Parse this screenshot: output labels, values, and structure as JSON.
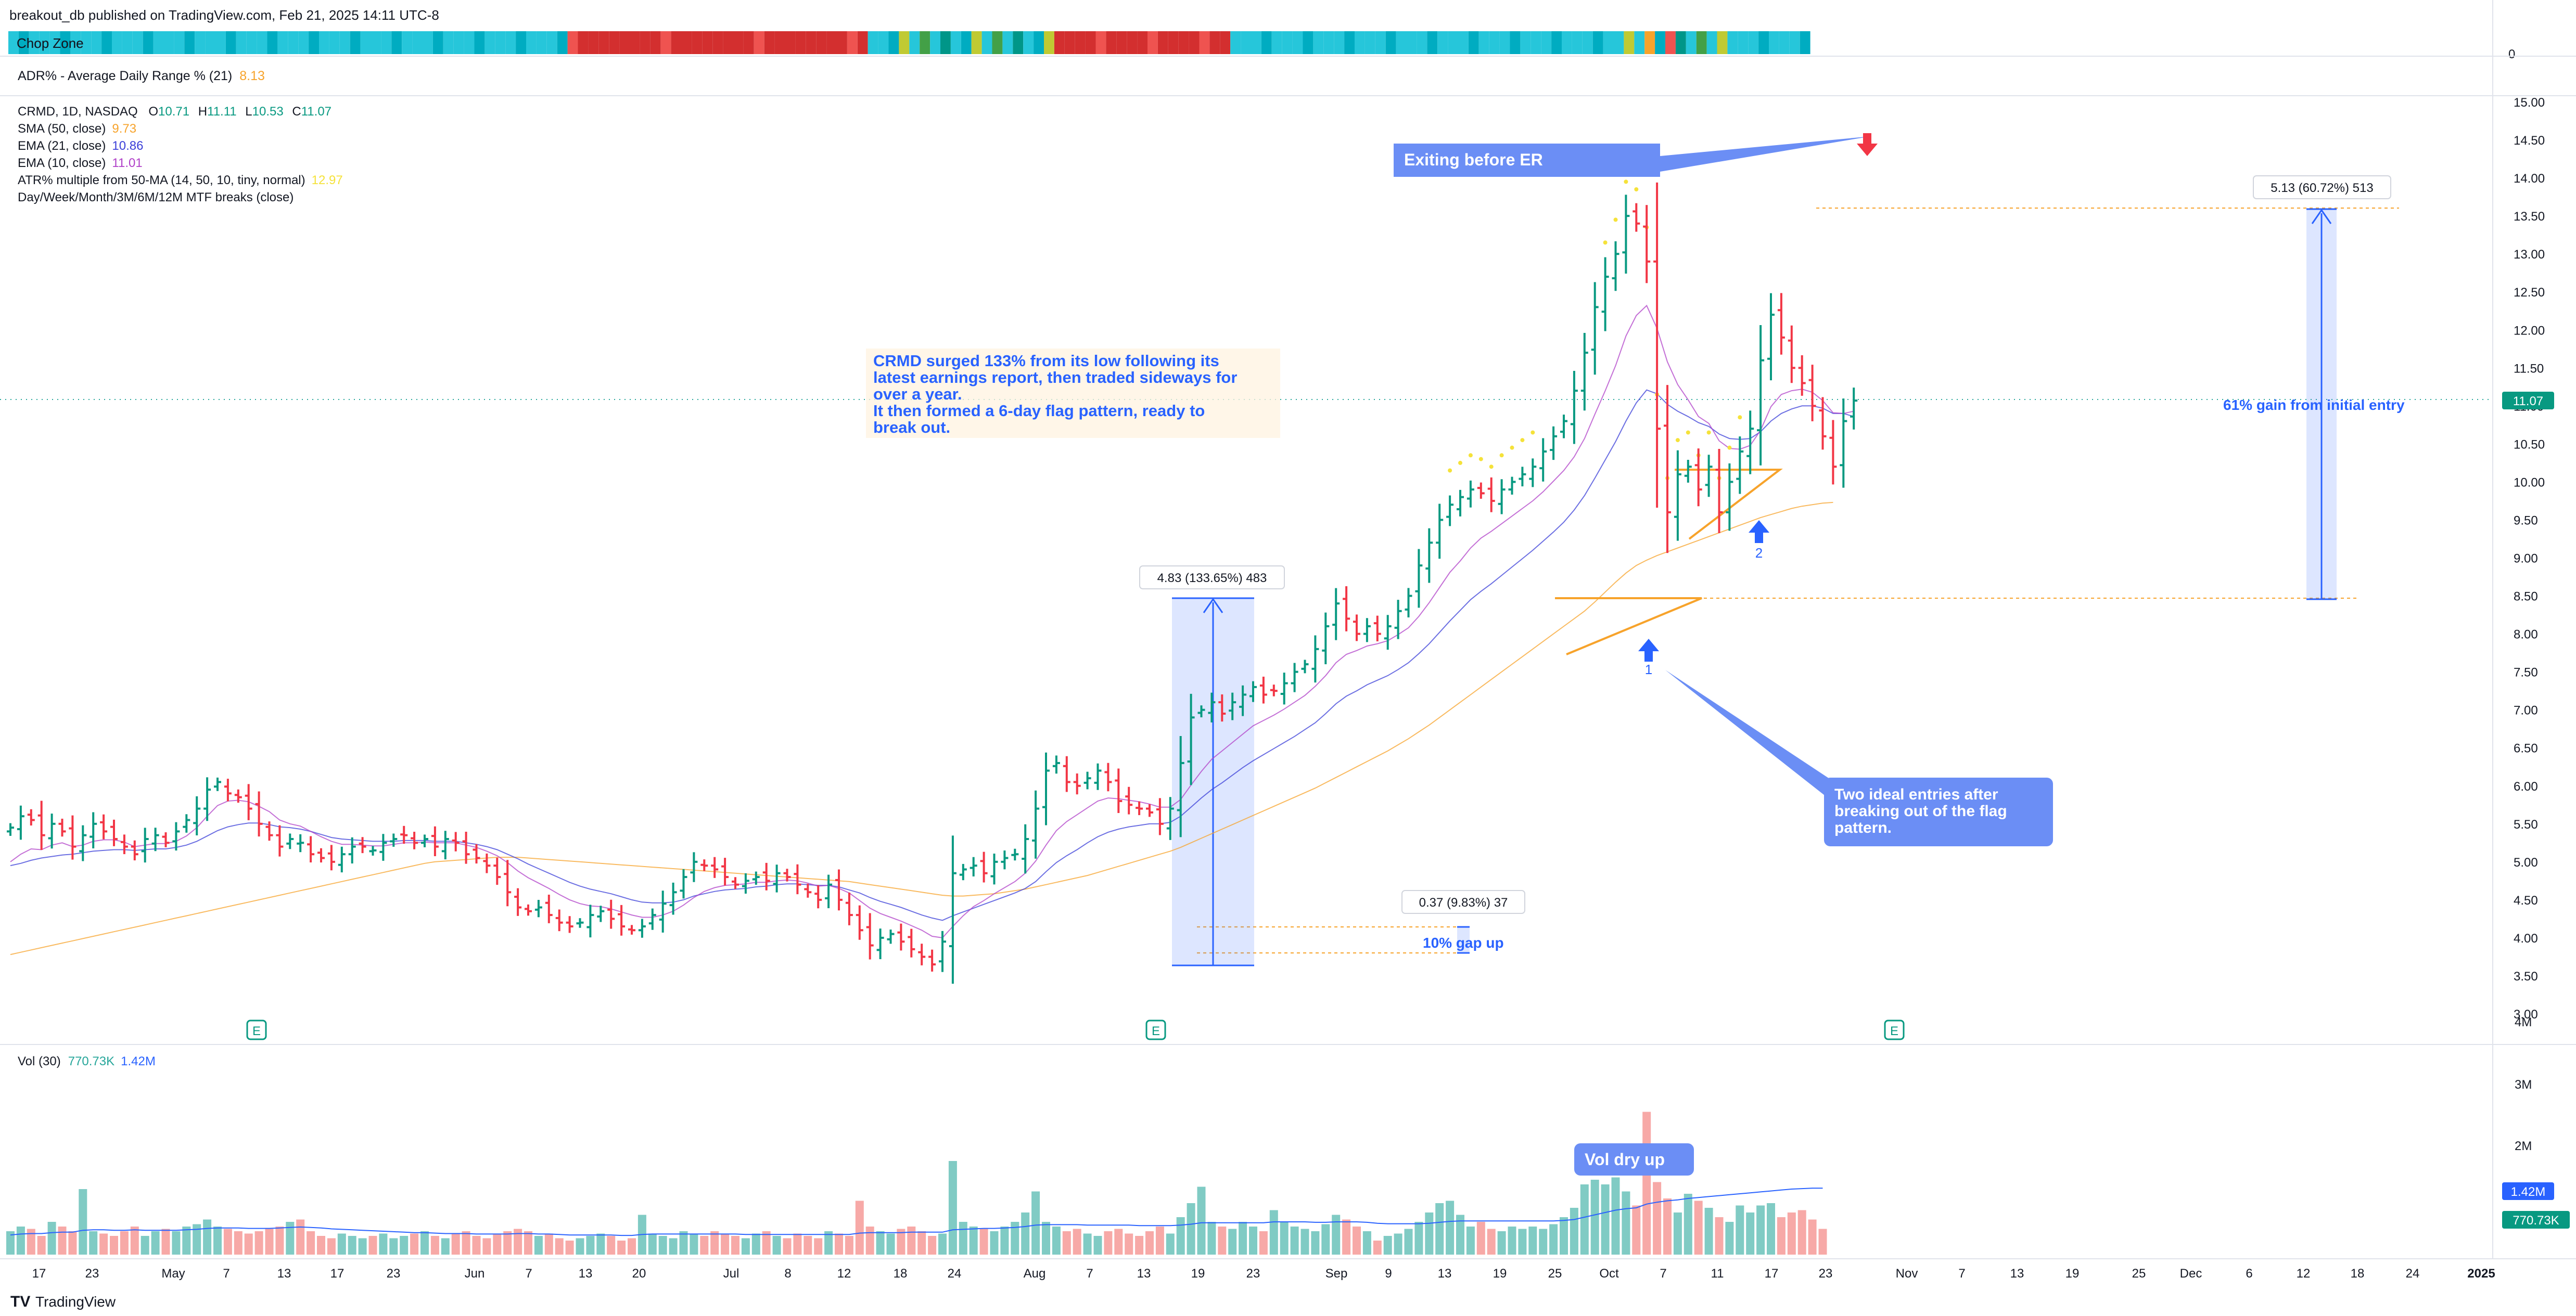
{
  "header": {
    "published": "breakout_db published on TradingView.com, Feb 21, 2025 14:11 UTC-8",
    "chop_zone_label": "Chop Zone",
    "chop_zone_axis": "0",
    "adr_label": "ADR% - Average Daily Range % (21)",
    "adr_value": "8.13",
    "symbol": "CRMD, 1D, NASDAQ",
    "ohlc": {
      "O": "10.71",
      "H": "11.11",
      "L": "10.53",
      "C": "11.07"
    },
    "indicators": [
      {
        "label": "SMA (50, close)",
        "value": "9.73",
        "color": "#f7a32b"
      },
      {
        "label": "EMA (21, close)",
        "value": "10.86",
        "color": "#3b3fd8"
      },
      {
        "label": "EMA (10, close)",
        "value": "11.01",
        "color": "#b040c8"
      },
      {
        "label": "ATR% multiple from 50-MA (14, 50, 10, tiny, normal)",
        "value": "12.97",
        "color": "#f5e23a"
      },
      {
        "label": "Day/Week/Month/3M/6M/12M MTF breaks (close)",
        "value": "",
        "color": "#131722"
      }
    ],
    "volume_label": "Vol (30)",
    "volume_values": [
      "770.73K",
      "1.42M"
    ]
  },
  "colors": {
    "up": "#26a69a",
    "down": "#ef5350",
    "up_strong": "#089981",
    "down_strong": "#f23645",
    "accent": "#2962ff"
  },
  "annotations": {
    "note_main": "CRMD surged 133% from its low following its latest earnings report, then traded sideways for over a year.\nIt then formed a 6-day flag pattern, ready to break out.",
    "exit_note": "Exiting before ER",
    "entries_note": "Two ideal entries after breaking out of the flag pattern.",
    "vol_note": "Vol dry up",
    "gain_note": "61% gain from initial entry",
    "gap_note": "10% gap up",
    "measure_1": "4.83 (133.65%) 483",
    "measure_2": "5.13 (60.72%) 513",
    "measure_3": "0.37 (9.83%) 37",
    "entry_1": "1",
    "entry_2": "2",
    "earnings_marker": "E"
  },
  "chart_data": {
    "type": "ohlc",
    "ylim": [
      2.8,
      15.2
    ],
    "y_ticks": [
      "15.00",
      "14.50",
      "14.00",
      "13.50",
      "13.00",
      "12.50",
      "12.00",
      "11.50",
      "11.00",
      "10.50",
      "10.00",
      "9.50",
      "9.00",
      "8.50",
      "8.00",
      "7.50",
      "7.00",
      "6.50",
      "6.00",
      "5.50",
      "5.00",
      "4.50",
      "4.00",
      "3.50",
      "3.00"
    ],
    "last_price": "11.07",
    "volume_ticks": [
      "4M",
      "3M",
      "2M"
    ],
    "x_ticks": [
      "17",
      "23",
      "May",
      "7",
      "13",
      "17",
      "23",
      "Jun",
      "7",
      "13",
      "20",
      "Jul",
      "8",
      "12",
      "18",
      "24",
      "Aug",
      "7",
      "13",
      "19",
      "23",
      "Sep",
      "9",
      "13",
      "19",
      "25",
      "Oct",
      "7",
      "11",
      "17",
      "23",
      "Nov",
      "7",
      "13",
      "19",
      "25",
      "Dec",
      "6",
      "12",
      "18",
      "24",
      "2025"
    ],
    "ohlc_closes": [
      5.45,
      5.6,
      5.55,
      5.35,
      5.5,
      5.4,
      5.2,
      5.35,
      5.5,
      5.4,
      5.3,
      5.2,
      5.1,
      5.3,
      5.35,
      5.25,
      5.4,
      5.55,
      5.7,
      5.95,
      6.05,
      5.9,
      5.85,
      5.7,
      5.5,
      5.35,
      5.2,
      5.3,
      5.25,
      5.1,
      5.05,
      5.0,
      5.1,
      5.2,
      5.2,
      5.15,
      5.25,
      5.3,
      5.35,
      5.25,
      5.3,
      5.2,
      5.3,
      5.25,
      5.1,
      5.05,
      4.95,
      4.8,
      4.6,
      4.4,
      4.35,
      4.4,
      4.3,
      4.2,
      4.15,
      4.2,
      4.3,
      4.35,
      4.25,
      4.15,
      4.1,
      4.15,
      4.3,
      4.45,
      4.6,
      4.8,
      5.0,
      4.95,
      4.9,
      4.8,
      4.7,
      4.75,
      4.8,
      4.75,
      4.85,
      4.8,
      4.7,
      4.6,
      4.5,
      4.7,
      4.5,
      4.3,
      4.1,
      3.9,
      4.0,
      4.05,
      3.95,
      3.85,
      3.75,
      3.65,
      3.95,
      4.85,
      4.9,
      4.95,
      4.85,
      5.0,
      5.05,
      5.1,
      5.3,
      5.7,
      6.2,
      6.3,
      6.05,
      6.0,
      6.1,
      6.2,
      6.05,
      5.8,
      5.75,
      5.7,
      5.65,
      5.5,
      5.7,
      6.3,
      6.9,
      7.0,
      7.1,
      6.95,
      7.1,
      7.2,
      7.3,
      7.2,
      7.25,
      7.35,
      7.5,
      7.6,
      7.8,
      8.1,
      8.4,
      8.2,
      8.0,
      8.1,
      8.0,
      8.1,
      8.3,
      8.5,
      8.9,
      9.2,
      9.5,
      9.7,
      9.8,
      9.9,
      9.85,
      9.75,
      9.9,
      10.0,
      10.1,
      10.2,
      10.4,
      10.6,
      10.8,
      11.2,
      11.7,
      12.3,
      12.7,
      13.0,
      13.5,
      13.4,
      12.9,
      10.7,
      9.6,
      10.1,
      10.2,
      9.9,
      10.2,
      9.6,
      10.0,
      10.4,
      10.7,
      11.6,
      12.2,
      11.9,
      11.5,
      11.3,
      11.0,
      10.6,
      10.2,
      10.8,
      11.07
    ],
    "ema21": [
      4.95,
      4.98,
      5.02,
      5.05,
      5.07,
      5.09,
      5.1,
      5.12,
      5.14,
      5.15,
      5.16,
      5.16,
      5.15,
      5.16,
      5.17,
      5.17,
      5.19,
      5.22,
      5.27,
      5.34,
      5.41,
      5.46,
      5.49,
      5.51,
      5.51,
      5.49,
      5.46,
      5.45,
      5.43,
      5.4,
      5.36,
      5.32,
      5.3,
      5.29,
      5.28,
      5.27,
      5.27,
      5.27,
      5.28,
      5.28,
      5.28,
      5.27,
      5.27,
      5.27,
      5.25,
      5.23,
      5.2,
      5.16,
      5.1,
      5.04,
      4.97,
      4.91,
      4.85,
      4.79,
      4.73,
      4.68,
      4.64,
      4.61,
      4.58,
      4.54,
      4.5,
      4.47,
      4.46,
      4.46,
      4.47,
      4.5,
      4.55,
      4.58,
      4.61,
      4.63,
      4.64,
      4.65,
      4.67,
      4.68,
      4.7,
      4.71,
      4.71,
      4.7,
      4.69,
      4.69,
      4.67,
      4.63,
      4.59,
      4.53,
      4.48,
      4.44,
      4.4,
      4.35,
      4.3,
      4.26,
      4.23,
      4.29,
      4.34,
      4.39,
      4.44,
      4.49,
      4.54,
      4.59,
      4.65,
      4.74,
      4.87,
      4.99,
      5.08,
      5.16,
      5.25,
      5.33,
      5.39,
      5.43,
      5.46,
      5.48,
      5.5,
      5.5,
      5.52,
      5.6,
      5.72,
      5.84,
      5.95,
      6.04,
      6.14,
      6.24,
      6.33,
      6.41,
      6.49,
      6.57,
      6.65,
      6.74,
      6.83,
      6.95,
      7.08,
      7.18,
      7.25,
      7.33,
      7.39,
      7.45,
      7.53,
      7.62,
      7.74,
      7.87,
      8.02,
      8.17,
      8.31,
      8.45,
      8.56,
      8.66,
      8.77,
      8.88,
      8.99,
      9.1,
      9.22,
      9.34,
      9.47,
      9.63,
      9.82,
      10.05,
      10.29,
      10.53,
      10.8,
      11.04,
      11.21,
      11.16,
      11.02,
      10.93,
      10.86,
      10.78,
      10.73,
      10.63,
      10.57,
      10.56,
      10.57,
      10.66,
      10.8,
      10.9,
      10.96,
      11.0,
      11.0,
      10.97,
      10.9,
      10.9,
      10.86
    ],
    "ema10": [
      5.0,
      5.1,
      5.17,
      5.16,
      5.22,
      5.25,
      5.2,
      5.22,
      5.27,
      5.29,
      5.29,
      5.26,
      5.2,
      5.22,
      5.24,
      5.24,
      5.27,
      5.34,
      5.45,
      5.6,
      5.74,
      5.8,
      5.81,
      5.79,
      5.73,
      5.66,
      5.55,
      5.5,
      5.47,
      5.4,
      5.33,
      5.27,
      5.23,
      5.23,
      5.22,
      5.21,
      5.21,
      5.23,
      5.25,
      5.25,
      5.26,
      5.25,
      5.25,
      5.25,
      5.22,
      5.19,
      5.14,
      5.08,
      4.99,
      4.88,
      4.79,
      4.72,
      4.65,
      4.57,
      4.5,
      4.45,
      4.42,
      4.41,
      4.38,
      4.34,
      4.3,
      4.27,
      4.27,
      4.3,
      4.35,
      4.43,
      4.53,
      4.61,
      4.66,
      4.69,
      4.7,
      4.71,
      4.73,
      4.73,
      4.75,
      4.76,
      4.75,
      4.72,
      4.68,
      4.69,
      4.65,
      4.59,
      4.49,
      4.39,
      4.32,
      4.27,
      4.22,
      4.16,
      4.1,
      4.02,
      4.0,
      4.15,
      4.29,
      4.41,
      4.49,
      4.58,
      4.66,
      4.74,
      4.85,
      5.01,
      5.22,
      5.41,
      5.53,
      5.62,
      5.71,
      5.8,
      5.84,
      5.83,
      5.81,
      5.79,
      5.76,
      5.72,
      5.72,
      5.82,
      6.01,
      6.19,
      6.35,
      6.46,
      6.57,
      6.68,
      6.79,
      6.86,
      6.93,
      7.01,
      7.1,
      7.19,
      7.31,
      7.45,
      7.62,
      7.73,
      7.78,
      7.84,
      7.87,
      7.91,
      7.99,
      8.08,
      8.23,
      8.41,
      8.61,
      8.81,
      8.96,
      9.13,
      9.26,
      9.35,
      9.45,
      9.55,
      9.65,
      9.75,
      9.87,
      10.01,
      10.15,
      10.33,
      10.57,
      10.89,
      11.2,
      11.53,
      11.92,
      12.19,
      12.32,
      12.02,
      11.58,
      11.28,
      11.08,
      10.86,
      10.77,
      10.54,
      10.44,
      10.43,
      10.48,
      10.68,
      10.99,
      11.15,
      11.2,
      11.22,
      11.18,
      11.07,
      10.91,
      10.9,
      10.93
    ],
    "sma50": [
      3.78,
      3.81,
      3.84,
      3.87,
      3.9,
      3.93,
      3.96,
      3.99,
      4.02,
      4.05,
      4.08,
      4.11,
      4.14,
      4.17,
      4.2,
      4.23,
      4.26,
      4.29,
      4.32,
      4.35,
      4.38,
      4.41,
      4.44,
      4.47,
      4.5,
      4.53,
      4.56,
      4.59,
      4.62,
      4.65,
      4.68,
      4.71,
      4.74,
      4.77,
      4.8,
      4.83,
      4.86,
      4.89,
      4.92,
      4.95,
      4.98,
      5.0,
      5.01,
      5.02,
      5.03,
      5.04,
      5.05,
      5.06,
      5.06,
      5.06,
      5.05,
      5.04,
      5.03,
      5.02,
      5.01,
      5.0,
      4.99,
      4.98,
      4.97,
      4.96,
      4.95,
      4.94,
      4.93,
      4.92,
      4.91,
      4.9,
      4.89,
      4.88,
      4.87,
      4.86,
      4.85,
      4.84,
      4.83,
      4.82,
      4.81,
      4.8,
      4.79,
      4.78,
      4.77,
      4.76,
      4.75,
      4.74,
      4.72,
      4.7,
      4.68,
      4.66,
      4.64,
      4.62,
      4.6,
      4.58,
      4.56,
      4.55,
      4.55,
      4.56,
      4.57,
      4.58,
      4.6,
      4.62,
      4.64,
      4.67,
      4.7,
      4.73,
      4.76,
      4.79,
      4.82,
      4.86,
      4.9,
      4.94,
      4.98,
      5.02,
      5.06,
      5.1,
      5.14,
      5.19,
      5.25,
      5.31,
      5.37,
      5.43,
      5.49,
      5.55,
      5.61,
      5.67,
      5.73,
      5.79,
      5.85,
      5.91,
      5.97,
      6.04,
      6.11,
      6.18,
      6.25,
      6.32,
      6.39,
      6.46,
      6.54,
      6.62,
      6.71,
      6.8,
      6.9,
      7.0,
      7.1,
      7.2,
      7.3,
      7.4,
      7.5,
      7.6,
      7.7,
      7.8,
      7.9,
      8.0,
      8.1,
      8.2,
      8.3,
      8.42,
      8.55,
      8.68,
      8.8,
      8.9,
      8.97,
      9.03,
      9.08,
      9.13,
      9.18,
      9.23,
      9.28,
      9.33,
      9.38,
      9.43,
      9.48,
      9.53,
      9.57,
      9.61,
      9.65,
      9.68,
      9.7,
      9.72,
      9.73
    ],
    "volume_m": [
      0.5,
      0.6,
      0.55,
      0.4,
      0.7,
      0.6,
      0.5,
      1.4,
      0.5,
      0.45,
      0.4,
      0.5,
      0.6,
      0.4,
      0.5,
      0.55,
      0.5,
      0.6,
      0.65,
      0.75,
      0.6,
      0.55,
      0.5,
      0.45,
      0.5,
      0.55,
      0.6,
      0.7,
      0.75,
      0.5,
      0.4,
      0.35,
      0.45,
      0.4,
      0.35,
      0.4,
      0.45,
      0.35,
      0.4,
      0.45,
      0.5,
      0.4,
      0.35,
      0.45,
      0.5,
      0.4,
      0.35,
      0.45,
      0.5,
      0.55,
      0.5,
      0.4,
      0.45,
      0.35,
      0.3,
      0.35,
      0.4,
      0.45,
      0.4,
      0.3,
      0.35,
      0.85,
      0.45,
      0.4,
      0.35,
      0.5,
      0.45,
      0.4,
      0.5,
      0.45,
      0.4,
      0.35,
      0.45,
      0.5,
      0.4,
      0.35,
      0.45,
      0.4,
      0.35,
      0.5,
      0.45,
      0.4,
      1.15,
      0.6,
      0.5,
      0.45,
      0.55,
      0.6,
      0.5,
      0.4,
      0.45,
      2.0,
      0.7,
      0.6,
      0.55,
      0.5,
      0.6,
      0.7,
      0.9,
      1.35,
      0.7,
      0.6,
      0.5,
      0.55,
      0.45,
      0.4,
      0.5,
      0.55,
      0.45,
      0.4,
      0.5,
      0.6,
      0.45,
      0.8,
      1.1,
      1.45,
      0.7,
      0.6,
      0.55,
      0.7,
      0.6,
      0.5,
      0.95,
      0.7,
      0.6,
      0.55,
      0.5,
      0.65,
      0.85,
      0.75,
      0.6,
      0.5,
      0.3,
      0.4,
      0.45,
      0.55,
      0.7,
      0.9,
      1.1,
      1.15,
      0.85,
      0.6,
      0.7,
      0.55,
      0.5,
      0.6,
      0.55,
      0.6,
      0.55,
      0.65,
      0.8,
      1.0,
      1.5,
      1.6,
      1.5,
      1.65,
      1.35,
      1.05,
      3.05,
      1.55,
      1.2,
      0.9,
      1.3,
      1.15,
      1.0,
      0.8,
      0.7,
      1.05,
      0.9,
      1.05,
      1.1,
      0.8,
      0.9,
      0.95,
      0.75,
      0.55
    ],
    "vol_ma": [
      0.42,
      0.44,
      0.45,
      0.45,
      0.47,
      0.48,
      0.48,
      0.52,
      0.53,
      0.53,
      0.52,
      0.52,
      0.53,
      0.52,
      0.52,
      0.52,
      0.52,
      0.53,
      0.54,
      0.56,
      0.57,
      0.57,
      0.57,
      0.56,
      0.56,
      0.56,
      0.57,
      0.58,
      0.59,
      0.58,
      0.57,
      0.55,
      0.54,
      0.53,
      0.52,
      0.51,
      0.5,
      0.49,
      0.48,
      0.47,
      0.47,
      0.46,
      0.45,
      0.45,
      0.45,
      0.44,
      0.44,
      0.44,
      0.44,
      0.45,
      0.45,
      0.44,
      0.44,
      0.43,
      0.42,
      0.42,
      0.42,
      0.42,
      0.42,
      0.41,
      0.41,
      0.43,
      0.44,
      0.44,
      0.44,
      0.44,
      0.44,
      0.44,
      0.44,
      0.44,
      0.44,
      0.43,
      0.43,
      0.43,
      0.43,
      0.43,
      0.43,
      0.43,
      0.43,
      0.43,
      0.43,
      0.43,
      0.46,
      0.47,
      0.47,
      0.47,
      0.47,
      0.48,
      0.48,
      0.48,
      0.48,
      0.53,
      0.54,
      0.55,
      0.56,
      0.56,
      0.57,
      0.58,
      0.6,
      0.63,
      0.64,
      0.64,
      0.64,
      0.64,
      0.63,
      0.63,
      0.63,
      0.63,
      0.63,
      0.62,
      0.62,
      0.62,
      0.62,
      0.63,
      0.65,
      0.68,
      0.68,
      0.68,
      0.68,
      0.68,
      0.68,
      0.68,
      0.7,
      0.7,
      0.7,
      0.7,
      0.69,
      0.69,
      0.7,
      0.7,
      0.7,
      0.69,
      0.67,
      0.66,
      0.66,
      0.66,
      0.66,
      0.67,
      0.69,
      0.71,
      0.72,
      0.72,
      0.72,
      0.72,
      0.72,
      0.72,
      0.72,
      0.72,
      0.72,
      0.72,
      0.73,
      0.75,
      0.8,
      0.85,
      0.9,
      0.95,
      0.98,
      1.0,
      1.08,
      1.12,
      1.15,
      1.17,
      1.2,
      1.22,
      1.24,
      1.26,
      1.28,
      1.3,
      1.32,
      1.34,
      1.36,
      1.38,
      1.4,
      1.41,
      1.42,
      1.42
    ]
  }
}
